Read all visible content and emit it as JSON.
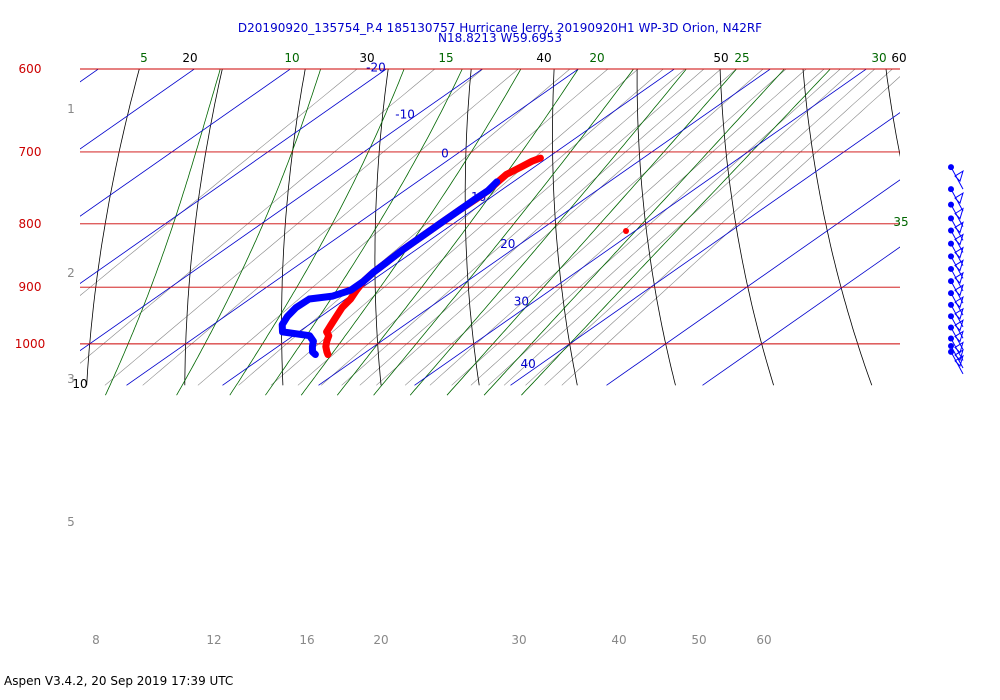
{
  "header": {
    "title_line1": "D20190920_135754_P.4 185130757 Hurricane Jerry, 20190920H1 WP-3D Orion, N42RF",
    "title_line2": "N18.8213 W59.6953"
  },
  "footer": {
    "text": "Aspen V3.4.2, 20 Sep 2019  17:39 UTC"
  },
  "colors": {
    "isobar": "#cc0000",
    "isotherm": "#0000cc",
    "dry_adiabat": "#000000",
    "moist_adiabat": "#006600",
    "mixing_ratio": "#888888",
    "temperature": "#ff0000",
    "dewpoint": "#0000ff"
  },
  "chart_data": {
    "type": "skew-t",
    "pressure_range": [
      600,
      1030
    ],
    "isobars": [
      "600",
      "700",
      "800",
      "900",
      "1000"
    ],
    "isotherms": [
      "-20",
      "-10",
      "0",
      "10",
      "20",
      "30",
      "40"
    ],
    "dry_adiabats_top": [
      "20",
      "30",
      "40",
      "50",
      "60"
    ],
    "dry_adiabat_left": "10",
    "moist_adiabats_top": [
      "5",
      "10",
      "15",
      "20",
      "25",
      "30"
    ],
    "moist_adiabat_right": "35",
    "mixing_ratio_bottom": [
      "8",
      "12",
      "16",
      "20",
      "30",
      "40",
      "50",
      "60"
    ],
    "height_labels": [
      "1",
      "2",
      "3",
      "5"
    ],
    "series": [
      {
        "name": "temperature",
        "p": [
          708,
          712,
          720,
          730,
          740,
          752,
          765,
          780,
          800,
          820,
          840,
          860,
          875,
          890,
          905,
          920,
          935,
          950,
          965,
          978,
          985,
          995,
          1005,
          1015,
          1020
        ],
        "t": [
          9.3,
          8.9,
          8.6,
          8.2,
          8.4,
          8.7,
          8.7,
          8.6,
          8.6,
          8.6,
          8.6,
          8.8,
          8.9,
          9.2,
          9.8,
          10.5,
          10.9,
          11.6,
          12.3,
          12.9,
          13.7,
          14.3,
          15.0,
          15.9,
          16.4
        ]
      },
      {
        "name": "dewpoint",
        "p": [
          740,
          752,
          765,
          780,
          800,
          820,
          840,
          860,
          875,
          890,
          905,
          915,
          920,
          935,
          950,
          965,
          978,
          985,
          995,
          1005,
          1015,
          1020
        ],
        "t": [
          8.3,
          8.7,
          8.6,
          8.6,
          8.6,
          8.6,
          8.6,
          8.8,
          8.9,
          9.2,
          9.2,
          8.2,
          6.2,
          6.1,
          6.5,
          7.2,
          8.3,
          11.7,
          12.9,
          13.6,
          14.4,
          15.1
        ]
      }
    ],
    "wind_barbs": {
      "p": [
        720,
        750,
        772,
        792,
        810,
        830,
        850,
        870,
        890,
        910,
        930,
        950,
        970,
        990,
        1004,
        1015
      ]
    }
  }
}
